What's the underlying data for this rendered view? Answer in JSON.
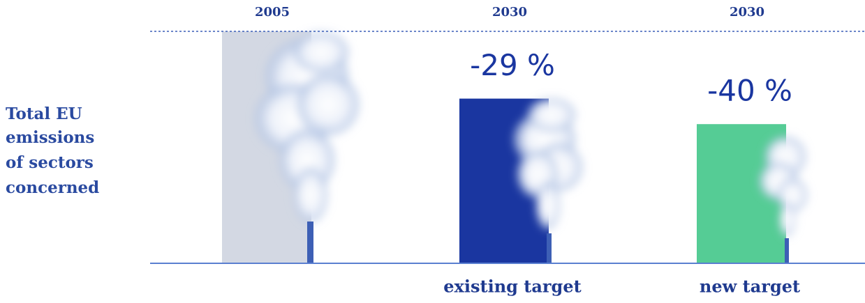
{
  "chart_data": {
    "type": "bar",
    "y_label": [
      "Total EU",
      "emissions",
      "of sectors",
      "concerned"
    ],
    "categories": [
      "2005",
      "2030",
      "2030"
    ],
    "values": [
      0,
      -29,
      -40
    ],
    "value_labels": [
      null,
      "-29 %",
      "-40 %"
    ],
    "bar_labels": [
      null,
      "existing target",
      "new target"
    ],
    "colors": [
      "#d3d8e3",
      "#1a36a0",
      "#55cc95"
    ],
    "ylim": [
      -100,
      0
    ]
  }
}
